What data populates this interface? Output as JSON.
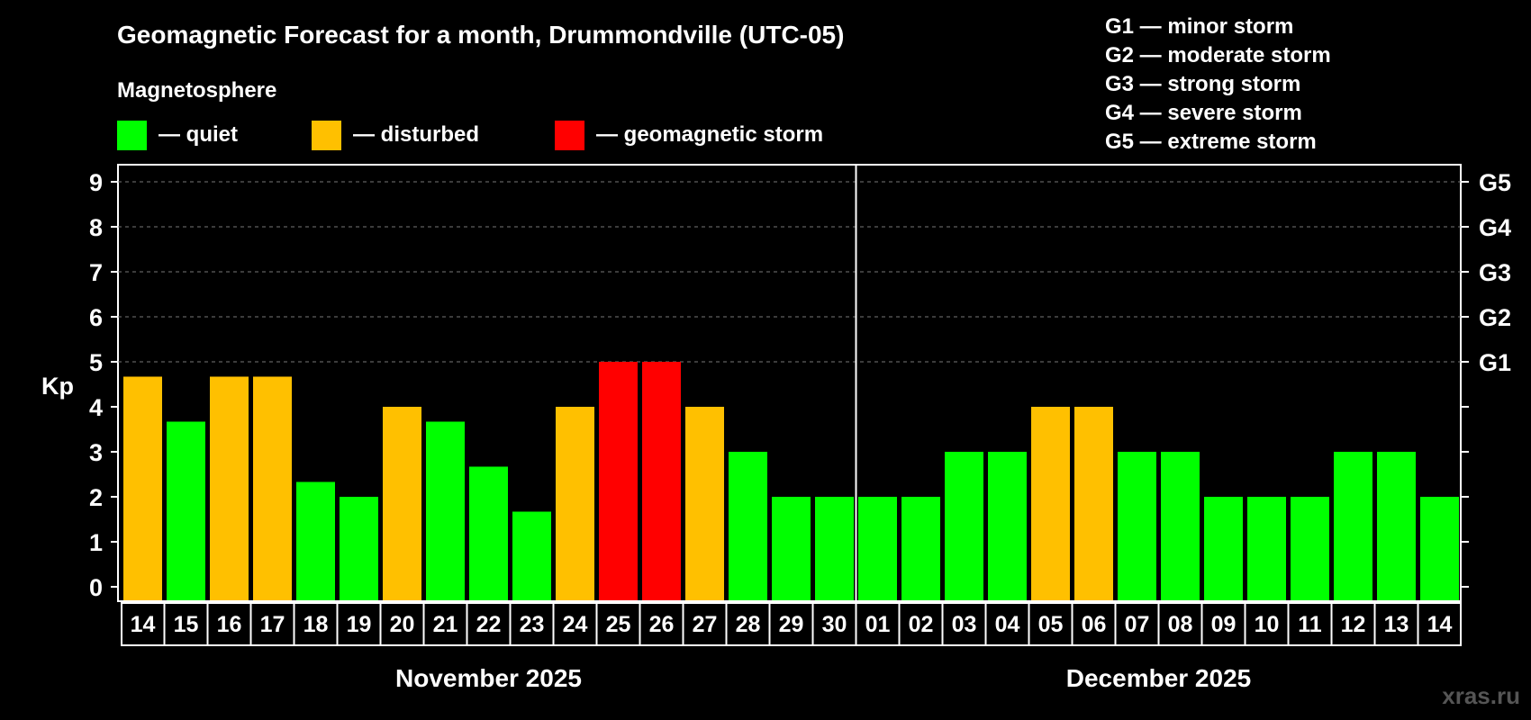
{
  "title": "Geomagnetic Forecast for a month, Drummondville (UTC-05)",
  "legend": {
    "heading": "Magnetosphere",
    "items": [
      {
        "key": "quiet",
        "label": "— quiet",
        "color": "#00ff00"
      },
      {
        "key": "disturbed",
        "label": "— disturbed",
        "color": "#ffc000"
      },
      {
        "key": "storm",
        "label": "— geomagnetic storm",
        "color": "#ff0000"
      }
    ]
  },
  "storm_scale": [
    "G1 — minor storm",
    "G2 — moderate storm",
    "G3 — strong storm",
    "G4 — severe storm",
    "G5 — extreme storm"
  ],
  "watermark": "xras.ru",
  "chart_data": {
    "type": "bar",
    "title": "Geomagnetic Forecast for a month, Drummondville (UTC-05)",
    "ylabel": "Kp",
    "xlabel": "",
    "ylim": [
      0,
      9
    ],
    "yticks": [
      "0",
      "1",
      "2",
      "3",
      "4",
      "5",
      "6",
      "7",
      "8",
      "9"
    ],
    "grid": {
      "y": [
        5,
        6,
        7,
        8,
        9
      ],
      "style": "dashed"
    },
    "right_axis": [
      {
        "kp": 5,
        "label": "G1"
      },
      {
        "kp": 6,
        "label": "G2"
      },
      {
        "kp": 7,
        "label": "G3"
      },
      {
        "kp": 8,
        "label": "G4"
      },
      {
        "kp": 9,
        "label": "G5"
      }
    ],
    "months": [
      {
        "label": "November 2025",
        "start": 0,
        "end": 16
      },
      {
        "label": "December 2025",
        "start": 17,
        "end": 30
      }
    ],
    "categories": [
      "14",
      "15",
      "16",
      "17",
      "18",
      "19",
      "20",
      "21",
      "22",
      "23",
      "24",
      "25",
      "26",
      "27",
      "28",
      "29",
      "30",
      "01",
      "02",
      "03",
      "04",
      "05",
      "06",
      "07",
      "08",
      "09",
      "10",
      "11",
      "12",
      "13",
      "14"
    ],
    "values": [
      4.67,
      3.67,
      4.67,
      4.67,
      2.33,
      2,
      4,
      3.67,
      2.67,
      1.67,
      4,
      5,
      5,
      4,
      3,
      2,
      2,
      2,
      2,
      3,
      3,
      4,
      4,
      3,
      3,
      2,
      2,
      2,
      3,
      3,
      2
    ],
    "levels": [
      "disturbed",
      "quiet",
      "disturbed",
      "disturbed",
      "quiet",
      "quiet",
      "disturbed",
      "quiet",
      "quiet",
      "quiet",
      "disturbed",
      "storm",
      "storm",
      "disturbed",
      "quiet",
      "quiet",
      "quiet",
      "quiet",
      "quiet",
      "quiet",
      "quiet",
      "disturbed",
      "disturbed",
      "quiet",
      "quiet",
      "quiet",
      "quiet",
      "quiet",
      "quiet",
      "quiet",
      "quiet"
    ]
  }
}
